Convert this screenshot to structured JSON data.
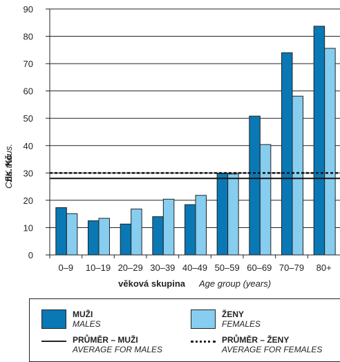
{
  "chart_data": {
    "type": "bar",
    "categories": [
      "0–9",
      "10–19",
      "20–29",
      "30–39",
      "40–49",
      "50–59",
      "60–69",
      "70–79",
      "80+"
    ],
    "series": [
      {
        "name": "MUŽI / MALES",
        "color": "#0a78b4",
        "values": [
          17.3,
          12.5,
          11.3,
          14.0,
          18.4,
          29.8,
          50.8,
          74.0,
          83.7
        ]
      },
      {
        "name": "ŽENY / FEMALES",
        "color": "#86cdef",
        "values": [
          15.1,
          13.4,
          16.8,
          20.4,
          21.8,
          29.6,
          40.4,
          58.1,
          75.6
        ]
      }
    ],
    "reference_lines": [
      {
        "name": "PRŮMĚR – MUŽI / AVERAGE FOR MALES",
        "value": 28,
        "style": "solid"
      },
      {
        "name": "PRŮMĚR – ŽENY / AVERAGE FOR FEMALES",
        "value": 30,
        "style": "dotted"
      }
    ],
    "ylim": [
      0,
      90
    ],
    "yticks": [
      "0",
      "10",
      "20",
      "30",
      "40",
      "50",
      "60",
      "70",
      "80",
      "90"
    ],
    "ylabel_cz": "tis. Kč",
    "ylabel_en": "CZK thous.",
    "xlabel_cz": "věková skupina",
    "xlabel_en": "Age group (years)",
    "grid": true
  },
  "legend": {
    "males_cz": "MUŽI",
    "males_en": "MALES",
    "females_cz": "ŽENY",
    "females_en": "FEMALES",
    "avg_males_cz": "PRŮMĚR – MUŽI",
    "avg_males_en": "AVERAGE FOR MALES",
    "avg_females_cz": "PRŮMĚR – ŽENY",
    "avg_females_en": "AVERAGE FOR FEMALES"
  }
}
